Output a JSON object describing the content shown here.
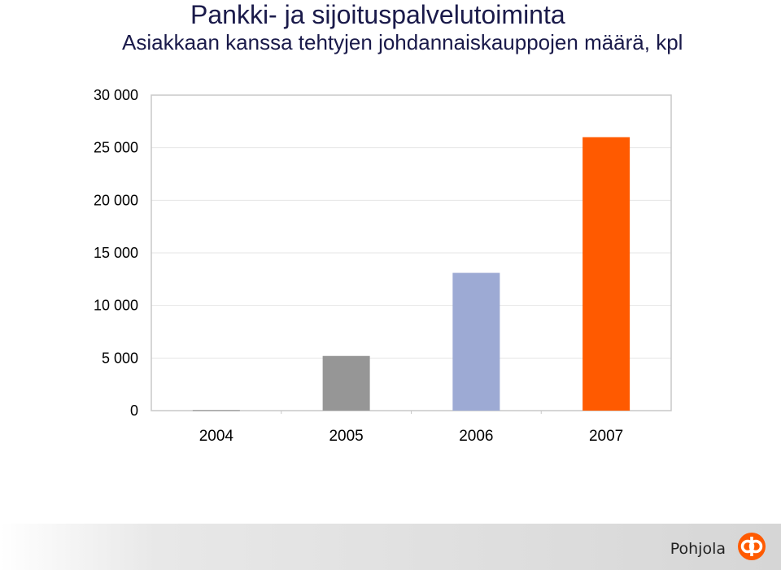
{
  "slide": {
    "title": "Pankki- ja sijoituspalvelutoiminta",
    "brand": "Pohjola"
  },
  "colors": {
    "title": "#1a1a4a",
    "bar_2004": "#8c8c8c",
    "bar_2005": "#969696",
    "bar_2006": "#9daad4",
    "bar_2007": "#ff5a00",
    "logo": "#ff5a00"
  },
  "chart_data": {
    "type": "bar",
    "title": "Asiakkaan kanssa tehtyjen johdannaiskauppojen määrä, kpl",
    "categories": [
      "2004",
      "2005",
      "2006",
      "2007"
    ],
    "values": [
      50,
      5200,
      13100,
      26000
    ],
    "ylim": [
      0,
      30000
    ],
    "yticks": [
      0,
      5000,
      10000,
      15000,
      20000,
      25000,
      30000
    ],
    "ytick_labels": [
      "0",
      "5 000",
      "10 000",
      "15 000",
      "20 000",
      "25 000",
      "30 000"
    ],
    "grid": true,
    "legend": "none",
    "bar_colors": [
      "#8c8c8c",
      "#969696",
      "#9daad4",
      "#ff5a00"
    ]
  }
}
